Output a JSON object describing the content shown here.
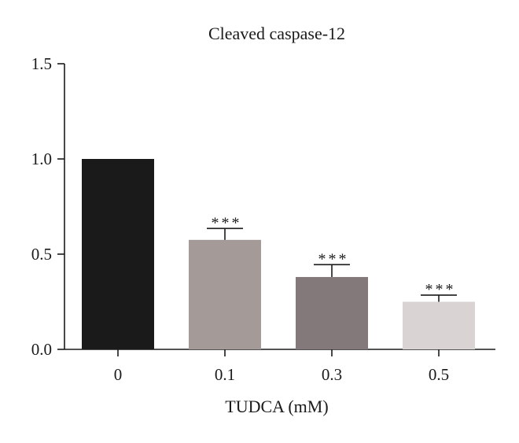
{
  "chart_data": {
    "type": "bar",
    "title": "Cleaved caspase-12",
    "xlabel": "TUDCA (mM)",
    "ylabel": "",
    "categories": [
      "0",
      "0.1",
      "0.3",
      "0.5"
    ],
    "values": [
      1.0,
      0.575,
      0.38,
      0.25
    ],
    "errors": [
      0.0,
      0.06,
      0.065,
      0.035
    ],
    "significance": [
      "",
      "***",
      "***",
      "***"
    ],
    "ylim": [
      0,
      1.5
    ],
    "yticks": [
      0.0,
      0.5,
      1.0,
      1.5
    ],
    "ytick_labels": [
      "0.0",
      "0.5",
      "1.0",
      "1.5"
    ],
    "bar_colors": [
      "#1a1a1a",
      "#a49b98",
      "#84797a",
      "#d9d3d3"
    ],
    "grid": false,
    "legend": "none"
  }
}
